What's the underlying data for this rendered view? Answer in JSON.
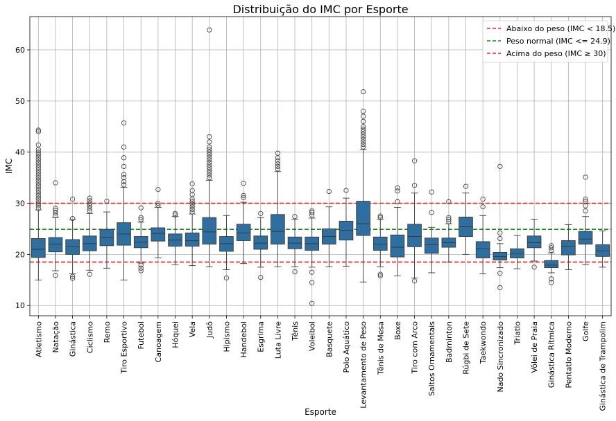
{
  "chart_data": {
    "type": "box",
    "title": "Distribuição do IMC por Esporte",
    "xlabel": "Esporte",
    "ylabel": "IMC",
    "ylim": [
      8,
      66.5
    ],
    "yticks": [
      10,
      20,
      30,
      40,
      50,
      60
    ],
    "grid": true,
    "legend_position": "top-right",
    "box_color": "#2f6f9f",
    "reference_lines": [
      {
        "label": "Abaixo do peso (IMC < 18.5)",
        "value": 18.5,
        "color": "#e8231e"
      },
      {
        "label": "Peso normal (IMC <= 24.9)",
        "value": 24.9,
        "color": "#1a8c1a"
      },
      {
        "label": "Acima do peso (IMC ≥ 30)",
        "value": 30,
        "color": "#e8231e"
      }
    ],
    "categories": [
      "Atletismo",
      "Natação",
      "Ginástica",
      "Ciclismo",
      "Remo",
      "Tiro Esportivo",
      "Futebol",
      "Canoagem",
      "Hóquei",
      "Vela",
      "Judô",
      "Hipismo",
      "Handebol",
      "Esgrima",
      "Luta Livre",
      "Tênis",
      "Voleibol",
      "Basquete",
      "Polo Aquático",
      "Levantamento de Peso",
      "Tênis de Mesa",
      "Boxe",
      "Tiro com Arco",
      "Saltos Ornamentais",
      "Badminton",
      "Rúgbi de Sete",
      "Taekwondo",
      "Nado Sincronizado",
      "Triatlo",
      "Vôlei de Praia",
      "Ginástica Rítmica",
      "Pentatlo Moderno",
      "Golfe",
      "Ginástica de Trampolim"
    ],
    "boxes": [
      {
        "whisker_low": 15.0,
        "q1": 19.4,
        "median": 21.0,
        "q3": 23.1,
        "whisker_high": 28.7,
        "outliers": [
          29,
          29.5,
          30,
          30.5,
          31,
          31.5,
          32,
          32.5,
          33,
          33.5,
          34,
          34.5,
          35,
          35.5,
          36,
          36.5,
          37,
          37.5,
          38,
          38.5,
          39,
          39.5,
          40,
          40.5,
          41.4,
          44.0,
          44.3
        ]
      },
      {
        "whisker_low": 16.8,
        "q1": 20.5,
        "median": 22.0,
        "q3": 23.3,
        "whisker_high": 27.2,
        "outliers": [
          15.9,
          27.6,
          28.1,
          28.6,
          29.0,
          34.0
        ]
      },
      {
        "whisker_low": 16.2,
        "q1": 20.0,
        "median": 21.5,
        "q3": 22.9,
        "whisker_high": 26.8,
        "outliers": [
          15.3,
          15.7,
          27.0,
          30.8
        ]
      },
      {
        "whisker_low": 16.9,
        "q1": 20.7,
        "median": 22.1,
        "q3": 23.6,
        "whisker_high": 28.0,
        "outliers": [
          16.1,
          28.5,
          29.0,
          29.5,
          30.0,
          30.5,
          31.0
        ]
      },
      {
        "whisker_low": 17.3,
        "q1": 21.7,
        "median": 23.3,
        "q3": 24.9,
        "whisker_high": 28.3,
        "outliers": [
          30.4
        ]
      },
      {
        "whisker_low": 15.0,
        "q1": 21.8,
        "median": 24.0,
        "q3": 26.2,
        "whisker_high": 33.1,
        "outliers": [
          33.6,
          34.2,
          35.0,
          35.6,
          37.2,
          38.9,
          41.0,
          45.7
        ]
      },
      {
        "whisker_low": 18.3,
        "q1": 21.3,
        "median": 22.4,
        "q3": 23.5,
        "whisker_high": 26.3,
        "outliers": [
          16.8,
          17.3,
          17.9,
          26.8,
          27.2,
          29.1
        ]
      },
      {
        "whisker_low": 19.3,
        "q1": 22.6,
        "median": 24.1,
        "q3": 25.2,
        "whisker_high": 29.2,
        "outliers": [
          29.6,
          30.0,
          32.7
        ]
      },
      {
        "whisker_low": 18.0,
        "q1": 21.6,
        "median": 22.8,
        "q3": 24.0,
        "whisker_high": 27.4,
        "outliers": [
          27.7,
          28.0
        ]
      },
      {
        "whisker_low": 17.8,
        "q1": 21.6,
        "median": 22.7,
        "q3": 24.2,
        "whisker_high": 27.9,
        "outliers": [
          28.3,
          28.8,
          29.3,
          29.8,
          30.3,
          30.8,
          31.7,
          32.5,
          33.8
        ]
      },
      {
        "whisker_low": 17.6,
        "q1": 22.0,
        "median": 24.4,
        "q3": 27.2,
        "whisker_high": 34.5,
        "outliers": [
          35.0,
          35.5,
          36.0,
          36.5,
          37.0,
          37.5,
          38.0,
          38.5,
          39.0,
          39.5,
          40.0,
          40.5,
          41.0,
          42.0,
          43.0,
          63.9
        ]
      },
      {
        "whisker_low": 17.0,
        "q1": 20.6,
        "median": 22.1,
        "q3": 23.5,
        "whisker_high": 27.6,
        "outliers": [
          15.4
        ]
      },
      {
        "whisker_low": 18.2,
        "q1": 22.7,
        "median": 24.2,
        "q3": 25.9,
        "whisker_high": 30.2,
        "outliers": [
          31.1,
          31.5,
          33.9
        ]
      },
      {
        "whisker_low": 17.5,
        "q1": 21.0,
        "median": 22.2,
        "q3": 23.6,
        "whisker_high": 27.2,
        "outliers": [
          15.5,
          28.0
        ]
      },
      {
        "whisker_low": 17.6,
        "q1": 22.0,
        "median": 24.5,
        "q3": 27.8,
        "whisker_high": 36.2,
        "outliers": [
          36.7,
          37.2,
          37.7,
          38.3,
          38.9,
          39.8
        ]
      },
      {
        "whisker_low": 17.6,
        "q1": 21.1,
        "median": 22.2,
        "q3": 23.4,
        "whisker_high": 26.9,
        "outliers": [
          16.6,
          27.4
        ]
      },
      {
        "whisker_low": 17.5,
        "q1": 20.8,
        "median": 22.1,
        "q3": 23.4,
        "whisker_high": 27.1,
        "outliers": [
          10.4,
          14.5,
          16.5,
          27.7,
          28.2,
          28.5
        ]
      },
      {
        "whisker_low": 17.6,
        "q1": 22.0,
        "median": 23.5,
        "q3": 25.0,
        "whisker_high": 29.3,
        "outliers": [
          32.3
        ]
      },
      {
        "whisker_low": 17.7,
        "q1": 22.8,
        "median": 24.7,
        "q3": 26.5,
        "whisker_high": 31.0,
        "outliers": [
          32.5
        ]
      },
      {
        "whisker_low": 14.6,
        "q1": 23.7,
        "median": 26.0,
        "q3": 30.4,
        "whisker_high": 40.5,
        "outliers": [
          41.0,
          41.5,
          42.0,
          42.5,
          43.0,
          43.5,
          44.0,
          44.5,
          45.0,
          46.0,
          47.0,
          48.0,
          51.8
        ]
      },
      {
        "whisker_low": 17.6,
        "q1": 20.8,
        "median": 22.0,
        "q3": 23.4,
        "whisker_high": 26.9,
        "outliers": [
          15.8,
          16.1,
          27.2,
          27.5
        ]
      },
      {
        "whisker_low": 15.8,
        "q1": 19.5,
        "median": 21.4,
        "q3": 23.8,
        "whisker_high": 29.2,
        "outliers": [
          30.3,
          32.4,
          33.0
        ]
      },
      {
        "whisker_low": 15.4,
        "q1": 21.5,
        "median": 23.5,
        "q3": 25.9,
        "whisker_high": 32.0,
        "outliers": [
          14.8,
          33.5,
          38.3
        ]
      },
      {
        "whisker_low": 16.4,
        "q1": 20.2,
        "median": 21.9,
        "q3": 23.2,
        "whisker_high": 25.3,
        "outliers": [
          28.2,
          32.2
        ]
      },
      {
        "whisker_low": 18.5,
        "q1": 21.4,
        "median": 22.3,
        "q3": 23.2,
        "whisker_high": 26.0,
        "outliers": [
          26.4,
          26.8,
          27.2,
          30.3
        ]
      },
      {
        "whisker_low": 20.0,
        "q1": 23.5,
        "median": 25.4,
        "q3": 27.3,
        "whisker_high": 32.0,
        "outliers": [
          33.3
        ]
      },
      {
        "whisker_low": 16.2,
        "q1": 19.3,
        "median": 21.1,
        "q3": 22.5,
        "whisker_high": 27.6,
        "outliers": [
          29.3,
          30.8
        ]
      },
      {
        "whisker_low": 17.4,
        "q1": 18.9,
        "median": 19.6,
        "q3": 20.4,
        "whisker_high": 22.1,
        "outliers": [
          13.5,
          16.3,
          23.1,
          24.2,
          37.2
        ]
      },
      {
        "whisker_low": 17.2,
        "q1": 19.3,
        "median": 20.2,
        "q3": 21.1,
        "whisker_high": 23.7,
        "outliers": []
      },
      {
        "whisker_low": 18.7,
        "q1": 21.3,
        "median": 22.3,
        "q3": 23.6,
        "whisker_high": 26.9,
        "outliers": [
          17.5
        ]
      },
      {
        "whisker_low": 16.4,
        "q1": 17.4,
        "median": 17.9,
        "q3": 18.8,
        "whisker_high": 20.3,
        "outliers": [
          14.5,
          15.2,
          20.8,
          21.3,
          21.7
        ]
      },
      {
        "whisker_low": 17.0,
        "q1": 19.9,
        "median": 21.6,
        "q3": 22.7,
        "whisker_high": 25.8,
        "outliers": []
      },
      {
        "whisker_low": 18.0,
        "q1": 22.0,
        "median": 23.0,
        "q3": 24.5,
        "whisker_high": 27.4,
        "outliers": [
          28.5,
          29.5,
          30.4,
          30.8,
          35.1
        ]
      },
      {
        "whisker_low": 17.5,
        "q1": 19.6,
        "median": 20.7,
        "q3": 21.9,
        "whisker_high": 24.6,
        "outliers": []
      }
    ]
  }
}
